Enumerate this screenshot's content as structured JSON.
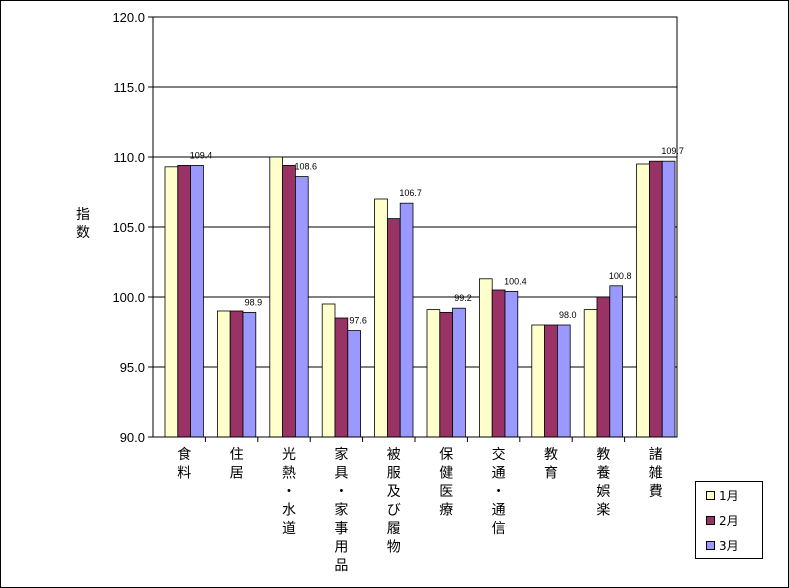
{
  "chart_data": {
    "type": "bar",
    "ylabel": "指数",
    "ylim": [
      90.0,
      120.0
    ],
    "yticks": [
      "120.0",
      "115.0",
      "110.0",
      "105.0",
      "100.0",
      "95.0",
      "90.0"
    ],
    "categories": [
      "食料",
      "住居",
      "光熱・水道",
      "家具・家事用品",
      "被服及び履物",
      "保健医療",
      "交通・通信",
      "教育",
      "教養娯楽",
      "諸雑費"
    ],
    "series": [
      {
        "name": "1月",
        "color": "#ffffcc",
        "values": [
          109.3,
          99.0,
          110.0,
          99.5,
          107.0,
          99.1,
          101.3,
          98.0,
          99.1,
          109.5
        ]
      },
      {
        "name": "2月",
        "color": "#993366",
        "values": [
          109.4,
          99.0,
          109.4,
          98.5,
          105.6,
          98.9,
          100.5,
          98.0,
          100.0,
          109.7
        ]
      },
      {
        "name": "3月",
        "color": "#9999ff",
        "values": [
          109.4,
          98.9,
          108.6,
          97.6,
          106.7,
          99.2,
          100.4,
          98.0,
          100.8,
          109.7
        ]
      }
    ],
    "data_labels": [
      "109.4",
      "98.9",
      "108.6",
      "97.6",
      "106.7",
      "99.2",
      "100.4",
      "98.0",
      "100.8",
      "109.7"
    ],
    "gridlines": true,
    "legend_position": "bottom-right"
  }
}
